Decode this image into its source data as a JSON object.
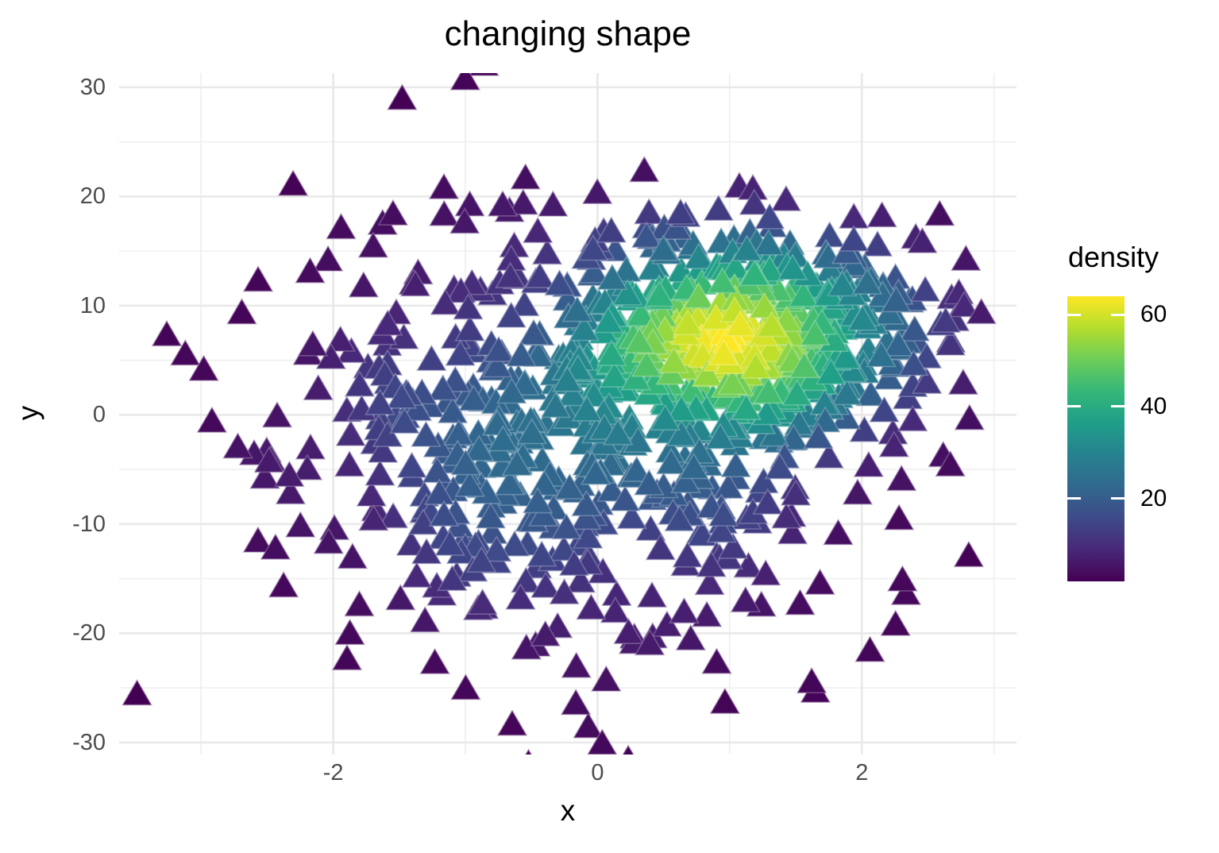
{
  "chart_data": {
    "type": "scatter",
    "title": "changing shape",
    "xlabel": "x",
    "ylabel": "y",
    "marker": "triangle-up",
    "marker_px": {
      "width": 36,
      "height": 31
    },
    "xlim": [
      -3.62,
      3.17
    ],
    "ylim": [
      -31.1,
      31.3
    ],
    "x_major_ticks": [
      -2,
      0,
      2
    ],
    "x_minor_ticks": [
      -3,
      -1,
      1,
      3
    ],
    "y_major_ticks": [
      30,
      20,
      10,
      0,
      -10,
      -20,
      -30
    ],
    "y_minor_ticks": [
      25,
      15,
      5,
      -5,
      -15,
      -25
    ],
    "grid": {
      "major_color": "#E8E8E8",
      "minor_color": "#F0F0F0",
      "background": "#FFFFFF"
    },
    "legend": {
      "title": "density",
      "position": "right",
      "ticks": [
        60,
        40,
        20
      ],
      "range": [
        2,
        64
      ]
    },
    "colormap": {
      "name": "viridis",
      "stops": [
        "#440154",
        "#482878",
        "#3E4A89",
        "#31688E",
        "#26828E",
        "#1F9E89",
        "#35B779",
        "#6DCD59",
        "#B4DE2C",
        "#FDE725"
      ]
    },
    "points": {
      "n": 1000,
      "seed": 20,
      "clusters": [
        {
          "weight": 0.45,
          "mean": [
            1.15,
            7.5
          ],
          "sd": [
            0.7,
            4.8
          ]
        },
        {
          "weight": 0.55,
          "mean": [
            -0.15,
            -2.5
          ],
          "sd": [
            1.15,
            10.5
          ]
        }
      ],
      "kde_bandwidth": [
        0.3,
        3.5
      ],
      "observed_extent": {
        "x": [
          -3.4,
          2.9
        ],
        "y": [
          -28.5,
          28.5
        ]
      },
      "density_peak_at": [
        1.25,
        8.3
      ]
    },
    "text_colors": {
      "title": "#000000",
      "axis_title": "#000000",
      "axis_text": "#4D4D4D",
      "legend_text": "#000000"
    }
  }
}
